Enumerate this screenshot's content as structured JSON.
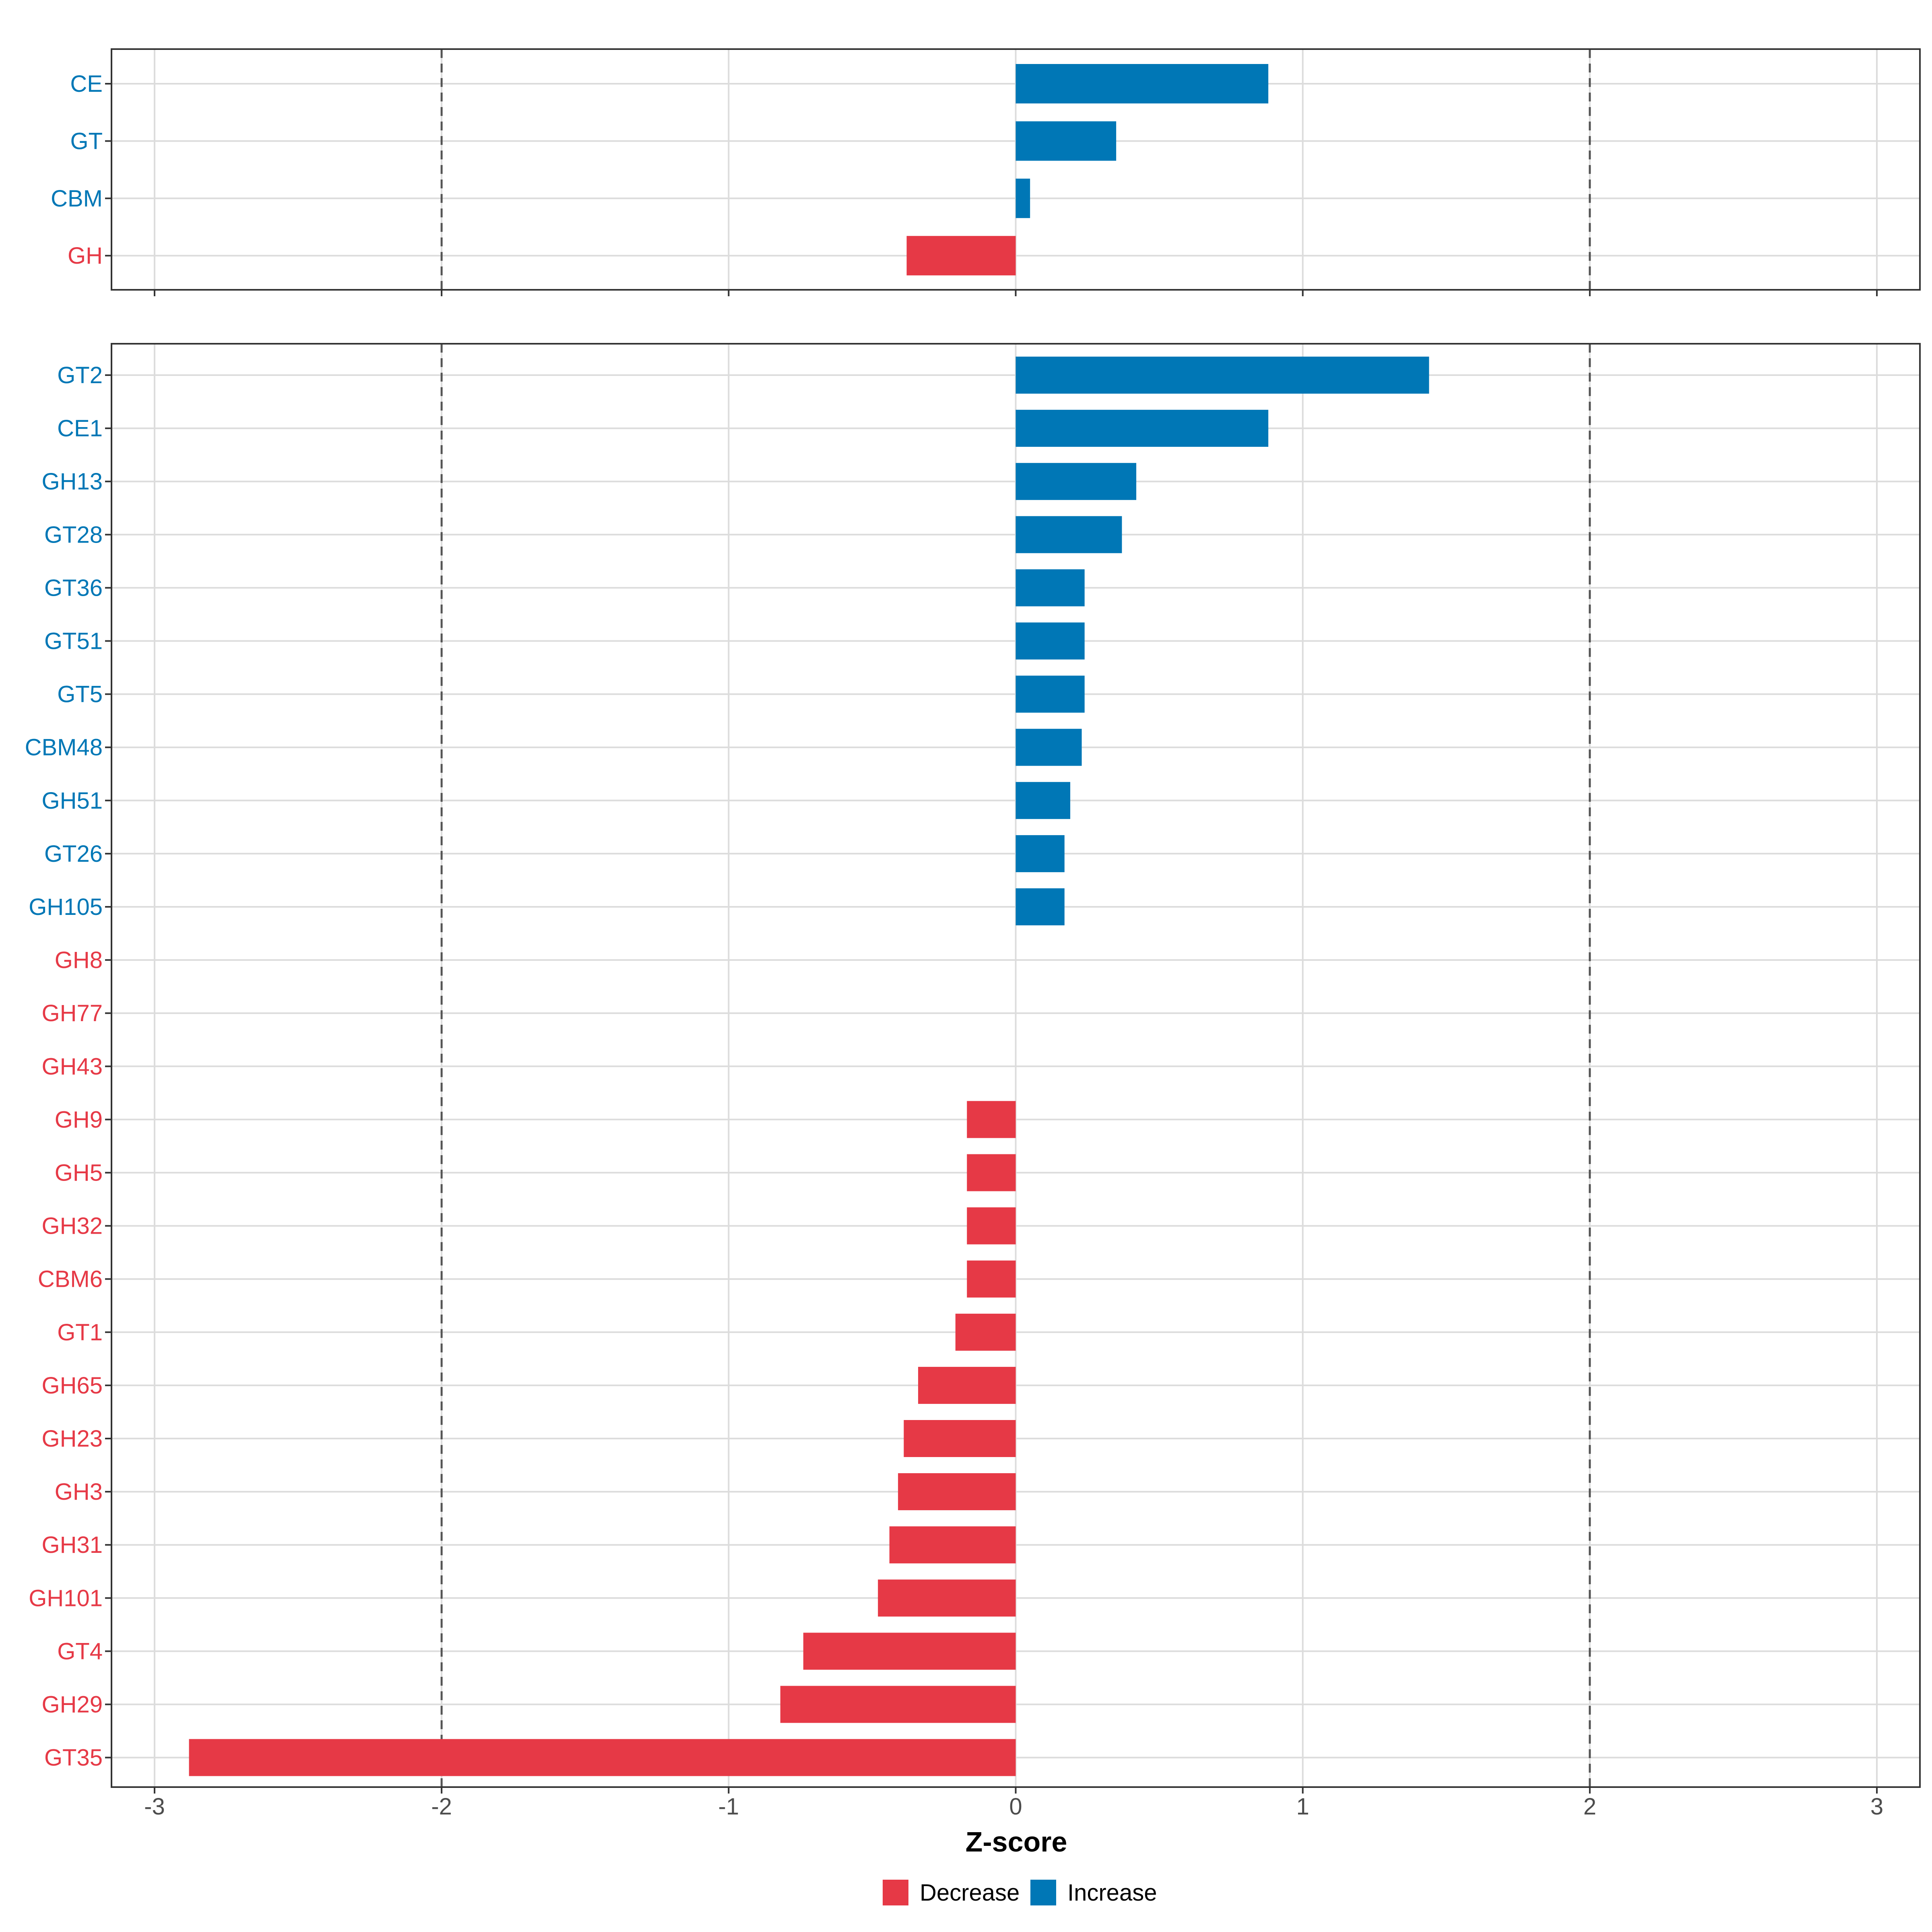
{
  "colors": {
    "decrease": "#E63946",
    "increase": "#0077B6"
  },
  "chart_data": {
    "type": "bar",
    "orientation": "horizontal",
    "xlabel": "Z-score",
    "xlim": [
      -3.15,
      3.15
    ],
    "xticks": [
      -3,
      -2,
      -1,
      0,
      1,
      2,
      3
    ],
    "xtick_labels": [
      "-3",
      "-2",
      "-1",
      "0",
      "1",
      "2",
      "3"
    ],
    "reference_lines": [
      -2,
      2
    ],
    "legend": [
      {
        "name": "Decrease",
        "color": "#E63946"
      },
      {
        "name": "Increase",
        "color": "#0077B6"
      }
    ],
    "panels": [
      {
        "categories": [
          "CE",
          "GT",
          "CBM",
          "GH"
        ],
        "values": [
          0.88,
          0.35,
          0.05,
          -0.38
        ],
        "groups": [
          "Increase",
          "Increase",
          "Increase",
          "Decrease"
        ]
      },
      {
        "categories": [
          "GT2",
          "CE1",
          "GH13",
          "GT28",
          "GT36",
          "GT51",
          "GT5",
          "CBM48",
          "GH51",
          "GT26",
          "GH105",
          "GH8",
          "GH77",
          "GH43",
          "GH9",
          "GH5",
          "GH32",
          "CBM6",
          "GT1",
          "GH65",
          "GH23",
          "GH3",
          "GH31",
          "GH101",
          "GT4",
          "GH29",
          "GT35"
        ],
        "values": [
          1.44,
          0.88,
          0.42,
          0.37,
          0.24,
          0.24,
          0.24,
          0.23,
          0.19,
          0.17,
          0.17,
          0,
          0,
          0,
          -0.17,
          -0.17,
          -0.17,
          -0.17,
          -0.21,
          -0.34,
          -0.39,
          -0.41,
          -0.44,
          -0.48,
          -0.74,
          -0.82,
          -2.88
        ],
        "groups": [
          "Increase",
          "Increase",
          "Increase",
          "Increase",
          "Increase",
          "Increase",
          "Increase",
          "Increase",
          "Increase",
          "Increase",
          "Increase",
          "Decrease",
          "Decrease",
          "Decrease",
          "Decrease",
          "Decrease",
          "Decrease",
          "Decrease",
          "Decrease",
          "Decrease",
          "Decrease",
          "Decrease",
          "Decrease",
          "Decrease",
          "Decrease",
          "Decrease",
          "Decrease"
        ]
      }
    ]
  }
}
